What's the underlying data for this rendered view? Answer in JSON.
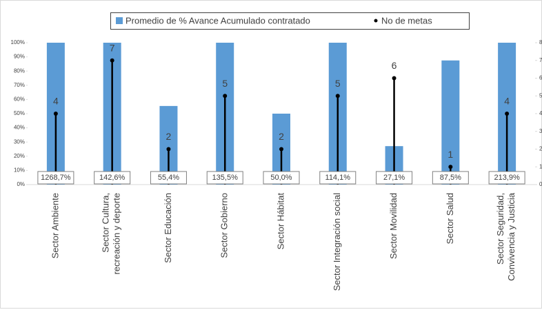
{
  "chart_data": {
    "type": "bar-lollipop",
    "categories": [
      "Sector Ambiente",
      "Sector Cultura, recreación y deporte",
      "Sector Educación",
      "Sector Gobierno",
      "Sector Hábitat",
      "Sector Integración social",
      "Sector Movilidad",
      "Sector Salud",
      "Sector Seguridad, Convivencia y Justicia"
    ],
    "series": [
      {
        "name": "Promedio de % Avance Acumulado contratado",
        "color": "#5b9bd5",
        "values": [
          1268.7,
          142.6,
          55.4,
          135.5,
          50.0,
          114.1,
          27.1,
          87.5,
          213.9
        ],
        "value_labels": [
          "1268,7%",
          "142,6%",
          "55,4%",
          "135,5%",
          "50,0%",
          "114,1%",
          "27,1%",
          "87,5%",
          "213,9%"
        ]
      },
      {
        "name": "No de metas",
        "color": "#000000",
        "axis": "y2",
        "values": [
          4,
          7,
          2,
          5,
          2,
          5,
          6,
          1,
          4
        ]
      }
    ],
    "ylim": [
      0,
      100
    ],
    "yticks": [
      {
        "value": 0,
        "label": "0%"
      },
      {
        "value": 10,
        "label": "10%"
      },
      {
        "value": 20,
        "label": "20%"
      },
      {
        "value": 30,
        "label": "30%"
      },
      {
        "value": 40,
        "label": "40%"
      },
      {
        "value": 50,
        "label": "50%"
      },
      {
        "value": 60,
        "label": "60%"
      },
      {
        "value": 70,
        "label": "70%"
      },
      {
        "value": 80,
        "label": "80%"
      },
      {
        "value": 90,
        "label": "90%"
      },
      {
        "value": 100,
        "label": "100%"
      }
    ],
    "y2lim": [
      0,
      8
    ],
    "y2ticks": [
      0,
      1,
      2,
      3,
      4,
      5,
      6,
      7,
      8
    ],
    "legend": "top"
  }
}
